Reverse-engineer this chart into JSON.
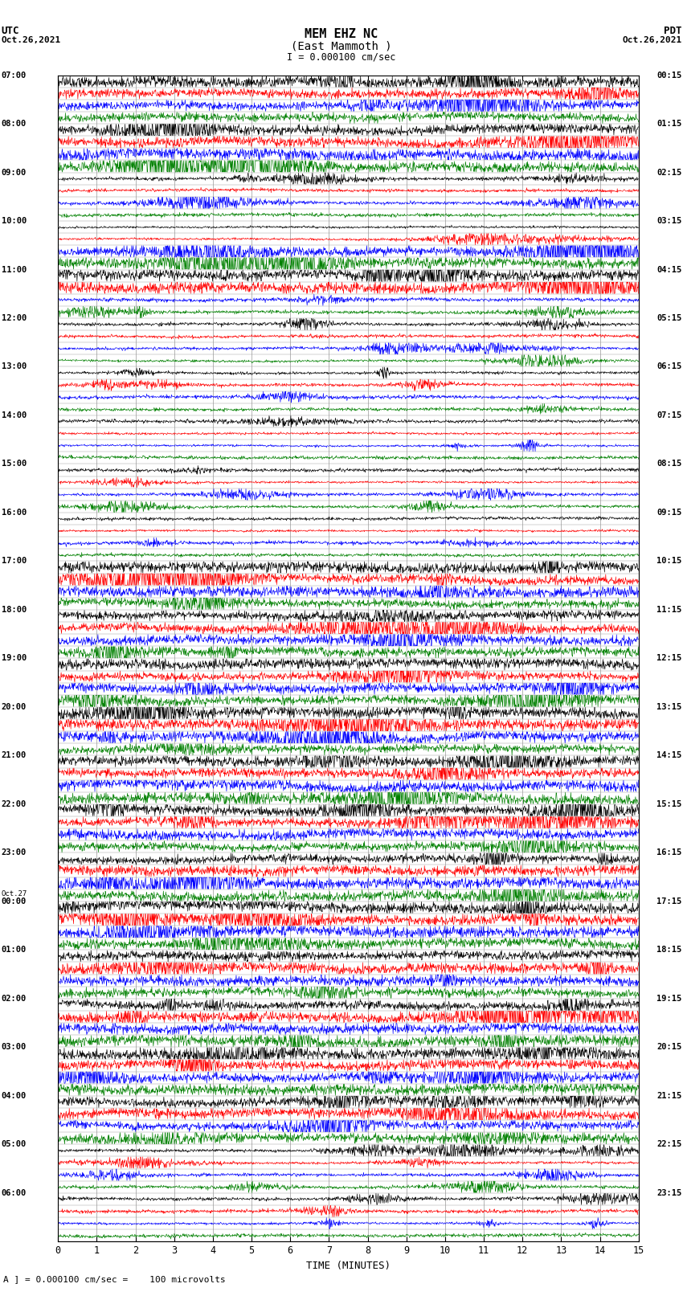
{
  "title_line1": "MEM EHZ NC",
  "title_line2": "(East Mammoth )",
  "scale_label": "I = 0.000100 cm/sec",
  "left_label_top": "UTC",
  "left_label_date": "Oct.26,2021",
  "right_label_top": "PDT",
  "right_label_date": "Oct.26,2021",
  "bottom_label": "TIME (MINUTES)",
  "footnote": "A ] = 0.000100 cm/sec =    100 microvolts",
  "utc_times_major": [
    "07:00",
    "08:00",
    "09:00",
    "10:00",
    "11:00",
    "12:00",
    "13:00",
    "14:00",
    "15:00",
    "16:00",
    "17:00",
    "18:00",
    "19:00",
    "20:00",
    "21:00",
    "22:00",
    "23:00",
    "Oct.27\n00:00",
    "01:00",
    "02:00",
    "03:00",
    "04:00",
    "05:00",
    "06:00"
  ],
  "pdt_times_major": [
    "00:15",
    "01:15",
    "02:15",
    "03:15",
    "04:15",
    "05:15",
    "06:15",
    "07:15",
    "08:15",
    "09:15",
    "10:15",
    "11:15",
    "12:15",
    "13:15",
    "14:15",
    "15:15",
    "16:15",
    "17:15",
    "18:15",
    "19:15",
    "20:15",
    "21:15",
    "22:15",
    "23:15"
  ],
  "colors": [
    "black",
    "red",
    "blue",
    "green"
  ],
  "n_rows": 96,
  "n_minutes": 15,
  "samples_per_row": 1500,
  "background_color": "white",
  "grid_color": "#999999",
  "amplitude_base": 0.28,
  "amplitude_quiet": 0.1,
  "high_activity_rows": [
    0,
    1,
    2,
    3,
    4,
    5,
    6,
    7,
    14,
    15,
    16,
    17,
    40,
    41,
    42,
    43,
    44,
    45,
    46,
    47,
    48,
    49,
    50,
    51,
    52,
    53,
    54,
    55,
    56,
    57,
    58,
    59,
    60,
    61,
    62,
    63,
    64,
    65,
    66,
    67,
    68,
    69,
    70,
    71,
    72,
    73,
    74,
    75,
    76,
    77,
    78,
    79,
    80,
    81,
    82,
    83,
    84,
    85,
    86,
    87
  ],
  "quiet_rows": [
    8,
    9,
    10,
    11,
    12,
    13,
    18,
    19,
    20,
    21,
    22,
    23,
    24,
    25,
    26,
    27,
    28,
    29,
    30,
    31,
    32,
    33,
    34,
    35,
    36,
    37,
    38,
    39,
    88,
    89,
    90,
    91,
    92,
    93,
    94,
    95
  ]
}
